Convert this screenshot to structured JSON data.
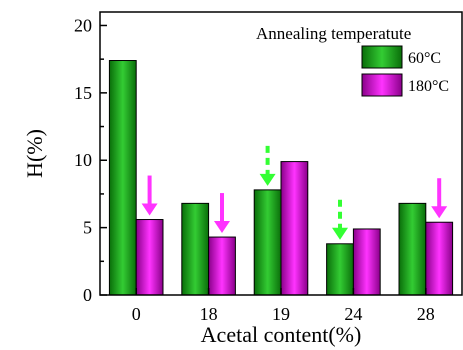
{
  "chart_data": {
    "type": "bar",
    "xlabel": "Acetal content(%)",
    "ylabel": "H(%)",
    "ylim": [
      0,
      21
    ],
    "yticks": [
      0,
      5,
      10,
      15,
      20
    ],
    "categories": [
      "0",
      "18",
      "19",
      "24",
      "28"
    ],
    "legend": {
      "title": "Annealing temperatute",
      "position": "top-right"
    },
    "series": [
      {
        "name": "60°C",
        "values": [
          17.4,
          6.8,
          7.8,
          3.8,
          6.8
        ],
        "color": "#1a9e1a"
      },
      {
        "name": "180°C",
        "values": [
          5.6,
          4.3,
          9.9,
          4.9,
          5.4
        ],
        "color": "#c200c2"
      }
    ],
    "arrows": [
      {
        "category": "0",
        "series": "180°C",
        "style": "solid",
        "color": "#ff33ff"
      },
      {
        "category": "18",
        "series": "180°C",
        "style": "solid",
        "color": "#ff33ff"
      },
      {
        "category": "19",
        "series": "60°C",
        "style": "dashed",
        "color": "#33ff33"
      },
      {
        "category": "24",
        "series": "60°C",
        "style": "dashed",
        "color": "#33ff33"
      },
      {
        "category": "28",
        "series": "180°C",
        "style": "solid",
        "color": "#ff33ff"
      }
    ],
    "grid": false
  }
}
